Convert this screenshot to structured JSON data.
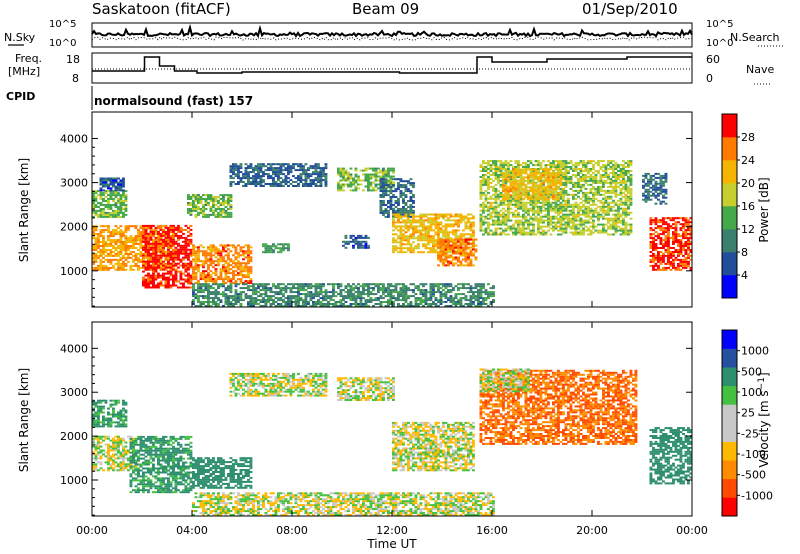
{
  "header": {
    "station": "Saskatoon (fitACF)",
    "beam": "Beam 09",
    "date": "01/Sep/2010"
  },
  "noise_panel": {
    "left_label": "N.Sky",
    "right_label": "N.Search",
    "left_ticks": [
      "10^5",
      "10^0"
    ],
    "right_ticks": [
      "10^5",
      "10^0"
    ]
  },
  "freq_panel": {
    "left_label_1": "Freq.",
    "left_label_2": "[MHz]",
    "left_ticks": [
      "18",
      "8"
    ],
    "right_label": "Nave",
    "right_ticks": [
      "60",
      "0"
    ]
  },
  "cpid": {
    "label": "CPID",
    "value": "normalsound (fast) 157"
  },
  "x_axis": {
    "ticks": [
      "00:00",
      "04:00",
      "08:00",
      "12:00",
      "16:00",
      "20:00",
      "00:00"
    ],
    "label": "Time UT"
  },
  "colors": {
    "power_scale": [
      "#0000ff",
      "#214d9a",
      "#3a7f6d",
      "#45a84a",
      "#c7cf2e",
      "#f5b400",
      "#ff7a00",
      "#ff0000"
    ],
    "velocity_scale": [
      "#ff0000",
      "#ff4a00",
      "#ff8c00",
      "#ffb800",
      "#c8c8c8",
      "#c8c8c8",
      "#45c040",
      "#2e8f6f",
      "#2550a0",
      "#0000ff"
    ]
  },
  "chart_data": [
    {
      "type": "heatmap",
      "panel": "power",
      "ylabel": "Slant Range [km]",
      "yticks": [
        "1000",
        "2000",
        "3000",
        "4000"
      ],
      "xticks": [
        "00:00",
        "04:00",
        "08:00",
        "12:00",
        "16:00",
        "20:00",
        "00:00"
      ],
      "xlim_hours": [
        0,
        24
      ],
      "ylim_km": [
        180,
        4600
      ],
      "colorbar": {
        "label": "Power [dB]",
        "ticks": [
          "28",
          "24",
          "20",
          "16",
          "12",
          "8",
          "4"
        ],
        "range": [
          0,
          30
        ]
      },
      "regions": [
        {
          "t": [
            0.0,
            3.3
          ],
          "r": [
            1000,
            2000
          ],
          "v": 22
        },
        {
          "t": [
            0.0,
            1.4
          ],
          "r": [
            2200,
            2800
          ],
          "v": 14
        },
        {
          "t": [
            0.3,
            1.3
          ],
          "r": [
            2800,
            3100
          ],
          "v": 6
        },
        {
          "t": [
            2.0,
            4.0
          ],
          "r": [
            600,
            2000
          ],
          "v": 28
        },
        {
          "t": [
            4.0,
            6.3
          ],
          "r": [
            700,
            1600
          ],
          "v": 24
        },
        {
          "t": [
            6.8,
            7.8
          ],
          "r": [
            1400,
            1600
          ],
          "v": 12
        },
        {
          "t": [
            3.8,
            5.5
          ],
          "r": [
            2200,
            2700
          ],
          "v": 14
        },
        {
          "t": [
            5.5,
            9.3
          ],
          "r": [
            2900,
            3400
          ],
          "v": 7
        },
        {
          "t": [
            9.8,
            12.0
          ],
          "r": [
            2800,
            3300
          ],
          "v": 14
        },
        {
          "t": [
            10.0,
            11.0
          ],
          "r": [
            1500,
            1800
          ],
          "v": 6
        },
        {
          "t": [
            11.5,
            12.8
          ],
          "r": [
            2200,
            3100
          ],
          "v": 8
        },
        {
          "t": [
            12.0,
            15.2
          ],
          "r": [
            1400,
            2300
          ],
          "v": 20
        },
        {
          "t": [
            13.8,
            15.3
          ],
          "r": [
            1100,
            1700
          ],
          "v": 24
        },
        {
          "t": [
            15.5,
            21.6
          ],
          "r": [
            1800,
            3500
          ],
          "v": 16
        },
        {
          "t": [
            16.4,
            18.8
          ],
          "r": [
            2600,
            3300
          ],
          "v": 20
        },
        {
          "t": [
            22.3,
            24.0
          ],
          "r": [
            1000,
            2200
          ],
          "v": 27
        },
        {
          "t": [
            22.0,
            23.0
          ],
          "r": [
            2500,
            3200
          ],
          "v": 8
        },
        {
          "t": [
            4.0,
            16.0
          ],
          "r": [
            180,
            700
          ],
          "v": 10
        }
      ]
    },
    {
      "type": "heatmap",
      "panel": "velocity",
      "ylabel": "Slant Range [km]",
      "yticks": [
        "1000",
        "2000",
        "3000",
        "4000"
      ],
      "xticks": [
        "00:00",
        "04:00",
        "08:00",
        "12:00",
        "16:00",
        "20:00",
        "00:00"
      ],
      "xlim_hours": [
        0,
        24
      ],
      "ylim_km": [
        180,
        4600
      ],
      "colorbar": {
        "label": "Velocity [m s^-1]",
        "ticks": [
          "1000",
          "500",
          "100",
          "25",
          "-25",
          "-100",
          "-500",
          "-1000"
        ],
        "range": [
          -1000,
          1000
        ]
      },
      "regions": [
        {
          "t": [
            0.0,
            1.8
          ],
          "r": [
            1200,
            2000
          ],
          "v": 0
        },
        {
          "t": [
            0.0,
            1.4
          ],
          "r": [
            2200,
            2800
          ],
          "v": 150
        },
        {
          "t": [
            1.5,
            4.0
          ],
          "r": [
            700,
            2000
          ],
          "v": 150
        },
        {
          "t": [
            4.0,
            6.3
          ],
          "r": [
            800,
            1500
          ],
          "v": 300
        },
        {
          "t": [
            5.5,
            9.3
          ],
          "r": [
            2900,
            3400
          ],
          "v": 0
        },
        {
          "t": [
            9.8,
            12.0
          ],
          "r": [
            2800,
            3300
          ],
          "v": 0
        },
        {
          "t": [
            12.0,
            15.2
          ],
          "r": [
            1200,
            2300
          ],
          "v": 0
        },
        {
          "t": [
            15.5,
            21.8
          ],
          "r": [
            1800,
            3500
          ],
          "v": -300
        },
        {
          "t": [
            15.5,
            17.5
          ],
          "r": [
            3000,
            3500
          ],
          "v": 0
        },
        {
          "t": [
            22.3,
            24.0
          ],
          "r": [
            900,
            2200
          ],
          "v": 200
        },
        {
          "t": [
            4.0,
            16.0
          ],
          "r": [
            180,
            700
          ],
          "v": 0
        }
      ]
    }
  ]
}
